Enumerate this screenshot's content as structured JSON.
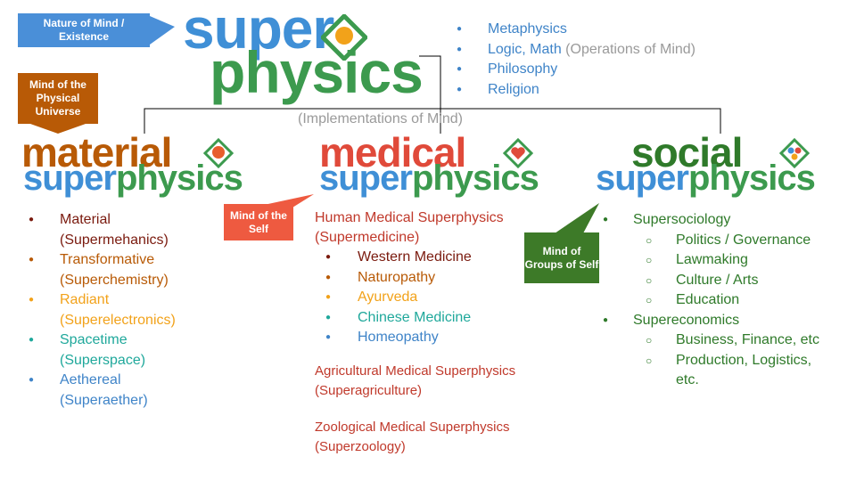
{
  "callouts": {
    "nature": "Nature of Mind / Existence",
    "physical": "Mind of the Physical Universe",
    "self": "Mind of the Self",
    "groups": "Mind of Groups of Self"
  },
  "logo": {
    "super": "super",
    "physics": "physics"
  },
  "top_list": {
    "metaphysics": "Metaphysics",
    "logic_main": "Logic, Math",
    "logic_note": "(Operations of Mind)",
    "philosophy": "Philosophy",
    "religion": "Religion"
  },
  "implementations": "(Implementations of Mind)",
  "material": {
    "word": "material",
    "super": "super",
    "physics": "physics",
    "items": [
      {
        "name": "Material",
        "sub": "(Supermehanics)",
        "color": "#7a1a0e"
      },
      {
        "name": "Transformative",
        "sub": "(Superchemistry)",
        "color": "#b85a06"
      },
      {
        "name": "Radiant",
        "sub": "(Superelectronics)",
        "color": "#f2a21a"
      },
      {
        "name": "Spacetime",
        "sub": "(Superspace)",
        "color": "#1fa89b"
      },
      {
        "name": "Aethereal",
        "sub": "(Superaether)",
        "color": "#3f84c8"
      }
    ]
  },
  "medical": {
    "word": "medical",
    "super": "super",
    "physics": "physics",
    "human_1": "Human Medical Superphysics",
    "human_2": "(Supermedicine)",
    "items": [
      {
        "name": "Western Medicine",
        "color": "#7a1a0e"
      },
      {
        "name": "Naturopathy",
        "color": "#b85a06"
      },
      {
        "name": "Ayurveda",
        "color": "#f2a21a"
      },
      {
        "name": "Chinese Medicine",
        "color": "#1fa89b"
      },
      {
        "name": "Homeopathy",
        "color": "#3f84c8"
      }
    ],
    "agri_1": "Agricultural Medical Superphysics",
    "agri_2": "(Superagriculture)",
    "zoo_1": "Zoological Medical Superphysics",
    "zoo_2": "(Superzoology)"
  },
  "social": {
    "word": "social",
    "super": "super",
    "physics": "physics",
    "sociology": "Supersociology",
    "sociology_items": [
      "Politics / Governance",
      "Lawmaking",
      "Culture / Arts",
      "Education"
    ],
    "economics": "Supereconomics",
    "economics_items": [
      "Business, Finance, etc",
      "Production, Logistics,",
      "etc."
    ]
  },
  "colors": {
    "blue": "#3f8fd6",
    "green": "#3c9a4e",
    "orange": "#b85a06",
    "red": "#e04a3a",
    "darkgreen": "#2f7a2a"
  }
}
